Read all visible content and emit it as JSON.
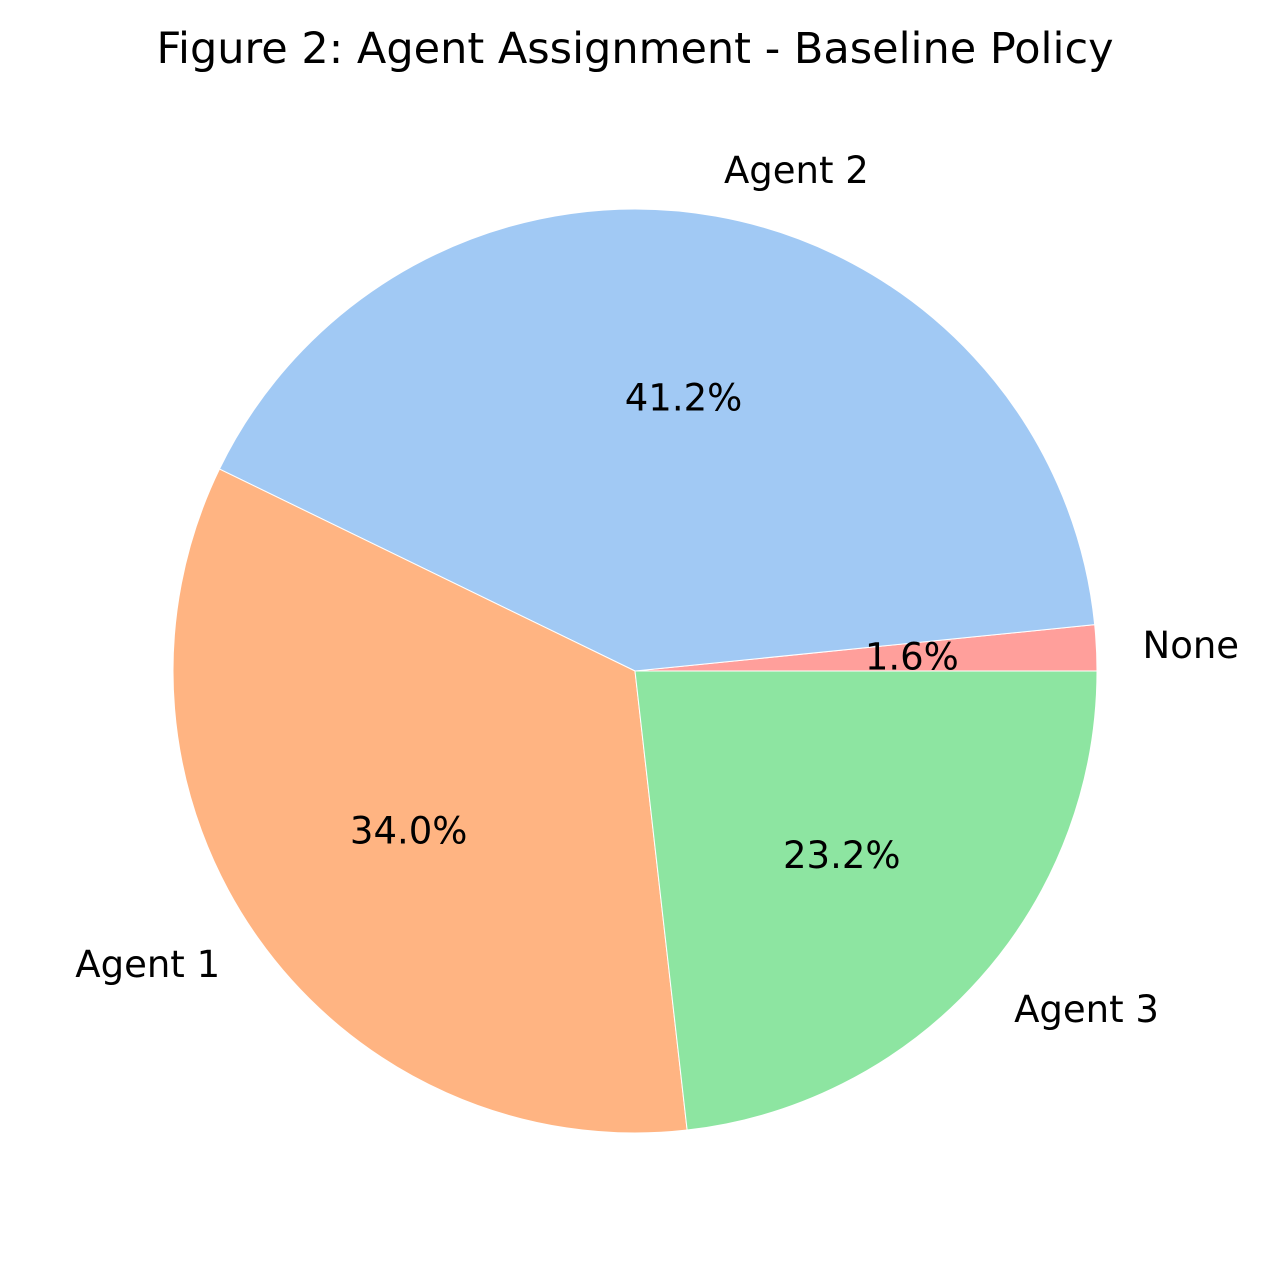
{
  "chart_data": {
    "type": "pie",
    "title": "Figure 2: Agent Assignment - Baseline Policy",
    "slices": [
      {
        "label": "None",
        "value": 1.6,
        "pct_label": "1.6%",
        "color": "#ff9f9b"
      },
      {
        "label": "Agent 2",
        "value": 41.2,
        "pct_label": "41.2%",
        "color": "#a1c9f4"
      },
      {
        "label": "Agent 1",
        "value": 34.0,
        "pct_label": "34.0%",
        "color": "#ffb482"
      },
      {
        "label": "Agent 3",
        "value": 23.2,
        "pct_label": "23.2%",
        "color": "#8de5a1"
      }
    ],
    "start_angle_deg": 0,
    "direction": "counterclockwise",
    "legend": "none"
  }
}
